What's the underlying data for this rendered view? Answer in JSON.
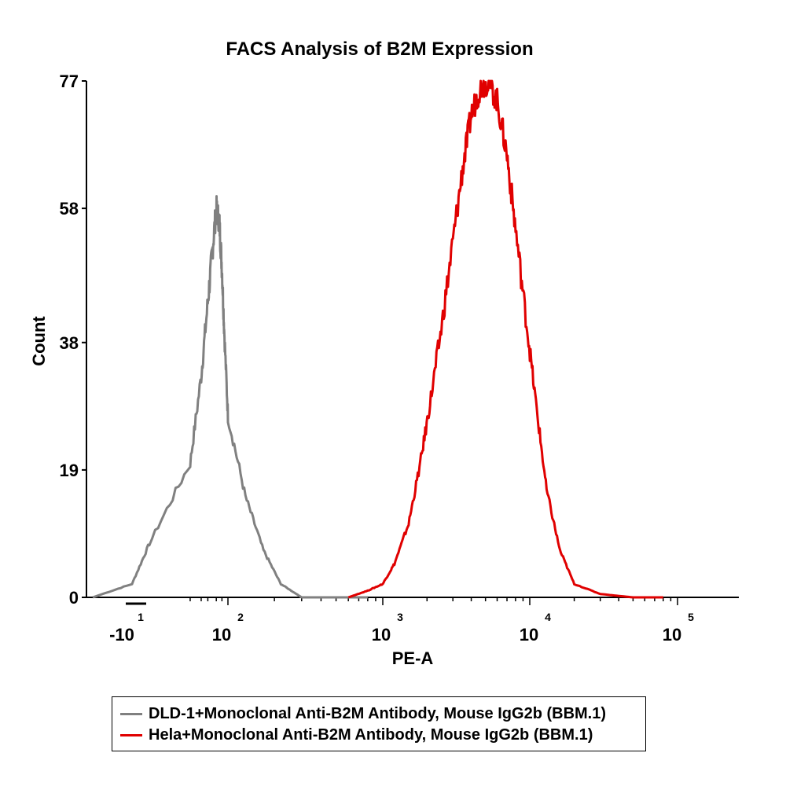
{
  "chart_data": {
    "type": "area",
    "title": "FACS Analysis of B2M Expression",
    "xlabel": "PE-A",
    "ylabel": "Count",
    "x_scale": "biexponential (log)",
    "y_ticks": [
      "0",
      "19",
      "38",
      "58",
      "77"
    ],
    "y_tick_values": [
      0,
      19,
      38,
      58,
      77
    ],
    "ylim": [
      0,
      77
    ],
    "x_ticks": [
      {
        "base": "-10",
        "exp": "1",
        "value": -10
      },
      {
        "base": "10",
        "exp": "2",
        "value": 100
      },
      {
        "base": "10",
        "exp": "3",
        "value": 1000
      },
      {
        "base": "10",
        "exp": "4",
        "value": 10000
      },
      {
        "base": "10",
        "exp": "5",
        "value": 100000
      }
    ],
    "legend_position": "bottom",
    "series": [
      {
        "name": "DLD-1+Monoclonal Anti-B2M Antibody, Mouse IgG2b (BBM.1)",
        "color": "#808080",
        "x": [
          -40,
          -10,
          0,
          10,
          20,
          30,
          40,
          50,
          60,
          70,
          80,
          100,
          130,
          170,
          220,
          300,
          500,
          800
        ],
        "y": [
          0,
          2,
          8,
          20,
          33,
          44,
          52,
          58,
          56,
          49,
          40,
          27,
          15,
          7,
          2,
          0,
          0,
          0
        ]
      },
      {
        "name": "Hela+Monoclonal Anti-B2M Antibody, Mouse IgG2b (BBM.1)",
        "color": "#e00000",
        "x": [
          600,
          800,
          1000,
          1200,
          1500,
          1800,
          2100,
          2500,
          3000,
          3500,
          4000,
          4600,
          5200,
          6000,
          7000,
          8000,
          9500,
          11000,
          13000,
          16000,
          20000,
          30000,
          50000,
          80000
        ],
        "y": [
          0,
          1,
          2,
          5,
          11,
          20,
          29,
          40,
          53,
          64,
          72,
          76,
          77,
          74,
          66,
          55,
          41,
          29,
          16,
          7,
          2,
          0.5,
          0,
          0
        ]
      }
    ]
  }
}
